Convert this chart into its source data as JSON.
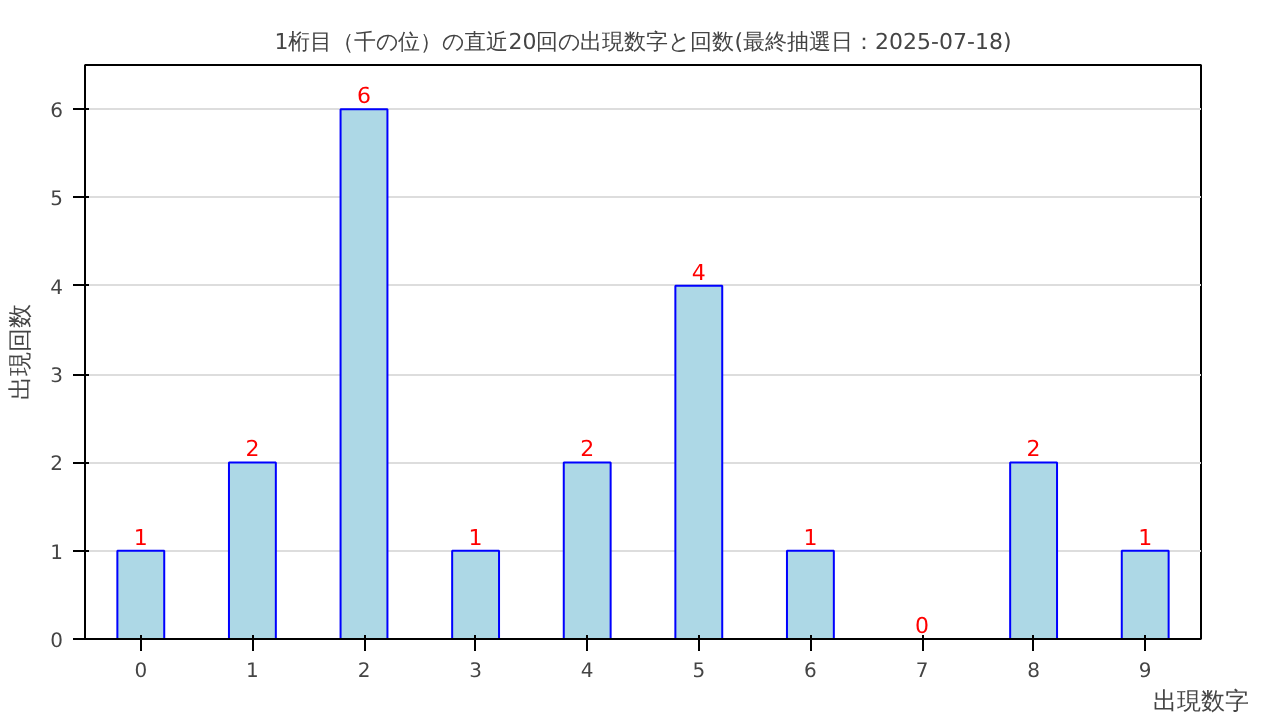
{
  "chart_data": {
    "type": "bar",
    "title": "1桁目（千の位）の直近20回の出現数字と回数(最終抽選日：2025-07-18)",
    "xlabel": "出現数字",
    "ylabel": "出現回数",
    "categories": [
      "0",
      "1",
      "2",
      "3",
      "4",
      "5",
      "6",
      "7",
      "8",
      "9"
    ],
    "values": [
      1,
      2,
      6,
      1,
      2,
      4,
      1,
      0,
      2,
      1
    ],
    "color": "#add8e6",
    "ylim": [
      0,
      6.5
    ],
    "yticks": [
      0,
      1,
      2,
      3,
      4,
      5,
      6
    ],
    "grid": "y",
    "data_labels": true
  }
}
